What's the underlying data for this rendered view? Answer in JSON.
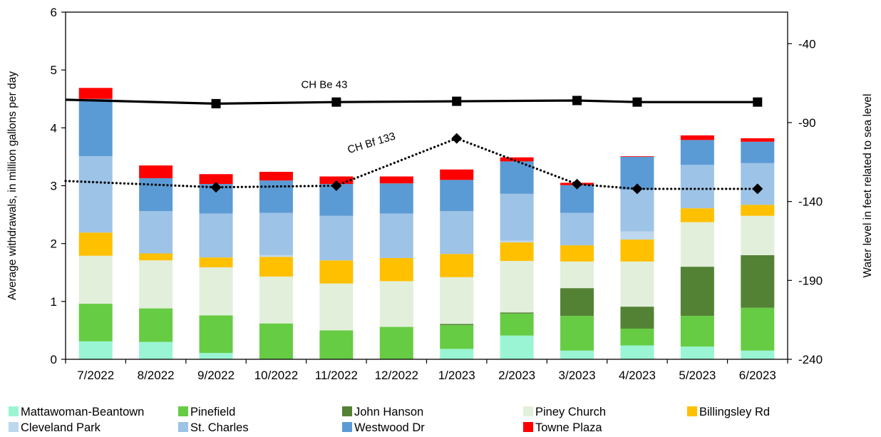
{
  "chart_data": {
    "type": "bar",
    "stacked": true,
    "categories": [
      "7/2022",
      "8/2022",
      "9/2022",
      "10/2022",
      "11/2022",
      "12/2022",
      "1/2023",
      "2/2023",
      "3/2023",
      "4/2023",
      "5/2023",
      "6/2023"
    ],
    "y_left": {
      "label": "Average withdrawals, in million gallons per day",
      "ylim": [
        0,
        6
      ],
      "ticks": [
        "0",
        "1",
        "2",
        "3",
        "4",
        "5",
        "6"
      ]
    },
    "y_right": {
      "label": "Water level in feet related to sea level",
      "ylim": [
        -240,
        -20
      ],
      "ticks": [
        "-40",
        "-90",
        "-140",
        "-190",
        "-240"
      ]
    },
    "grid": false,
    "legend_position": "bottom",
    "series": [
      {
        "name": "Mattawoman-Beantown",
        "color": "#99f5d3",
        "values": [
          0.31,
          0.3,
          0.11,
          0.0,
          0.0,
          0.0,
          0.18,
          0.41,
          0.15,
          0.24,
          0.22,
          0.15
        ]
      },
      {
        "name": "Pinefield",
        "color": "#66cc44",
        "values": [
          0.65,
          0.58,
          0.65,
          0.62,
          0.5,
          0.56,
          0.41,
          0.38,
          0.6,
          0.29,
          0.53,
          0.74
        ]
      },
      {
        "name": "John Hanson",
        "color": "#548235",
        "values": [
          0.0,
          0.0,
          0.0,
          0.0,
          0.0,
          0.0,
          0.02,
          0.02,
          0.48,
          0.38,
          0.85,
          0.91
        ]
      },
      {
        "name": "Piney Church",
        "color": "#e2efda",
        "values": [
          0.83,
          0.83,
          0.83,
          0.81,
          0.81,
          0.79,
          0.81,
          0.89,
          0.46,
          0.78,
          0.77,
          0.68
        ]
      },
      {
        "name": "Billingsley Rd",
        "color": "#ffc000",
        "values": [
          0.4,
          0.12,
          0.17,
          0.34,
          0.4,
          0.4,
          0.4,
          0.32,
          0.28,
          0.38,
          0.24,
          0.19
        ]
      },
      {
        "name": "Cleveland Park",
        "color": "#bdd7ee",
        "values": [
          0.0,
          0.0,
          0.0,
          0.03,
          0.0,
          0.0,
          0.0,
          0.03,
          0.0,
          0.14,
          0.0,
          0.0
        ]
      },
      {
        "name": "St. Charles",
        "color": "#9dc3e6",
        "values": [
          1.32,
          0.73,
          0.76,
          0.73,
          0.77,
          0.77,
          0.74,
          0.81,
          0.56,
          0.72,
          0.75,
          0.72
        ]
      },
      {
        "name": "Westwood Dr",
        "color": "#5b9bd5",
        "values": [
          0.99,
          0.57,
          0.51,
          0.56,
          0.55,
          0.52,
          0.54,
          0.56,
          0.48,
          0.57,
          0.43,
          0.37
        ]
      },
      {
        "name": "Towne Plaza",
        "color": "#ff0000",
        "values": [
          0.19,
          0.22,
          0.17,
          0.15,
          0.13,
          0.12,
          0.18,
          0.07,
          0.04,
          0.01,
          0.08,
          0.06
        ]
      }
    ],
    "lines": [
      {
        "name": "CH Be 43",
        "label": "CH Be 43",
        "axis": "right",
        "style": "solid",
        "color": "#000000",
        "points": [
          [
            -0.5,
            -75.5
          ],
          [
            2,
            -78
          ],
          [
            4,
            -77
          ],
          [
            6,
            -76.5
          ],
          [
            8,
            -76
          ],
          [
            9,
            -77
          ],
          [
            11,
            -77
          ]
        ],
        "markers": [
          2,
          4,
          6,
          8,
          9,
          11
        ],
        "marker": "square",
        "label_anchor": [
          3.8,
          -68
        ]
      },
      {
        "name": "CH Bf 133",
        "label": "CH Bf 133",
        "axis": "right",
        "style": "dotted",
        "color": "#000000",
        "points": [
          [
            -0.5,
            -127
          ],
          [
            2,
            -131
          ],
          [
            4,
            -130
          ],
          [
            6,
            -100
          ],
          [
            8,
            -129
          ],
          [
            9,
            -132
          ],
          [
            11,
            -132
          ]
        ],
        "markers": [
          2,
          4,
          6,
          8,
          9,
          11
        ],
        "marker": "diamond",
        "label_anchor": [
          4.6,
          -105
        ]
      }
    ]
  }
}
